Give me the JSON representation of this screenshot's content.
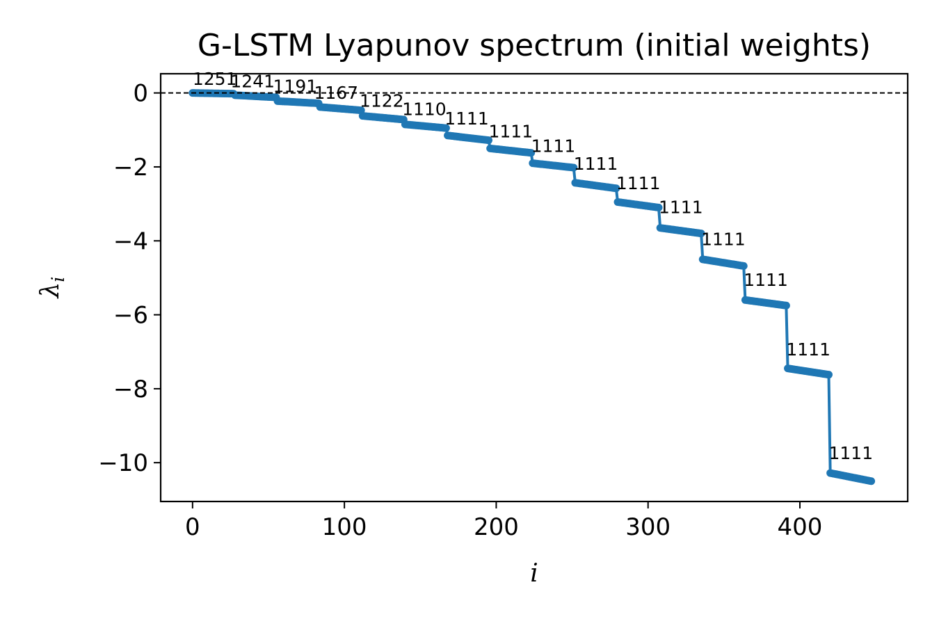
{
  "chart_data": {
    "type": "line",
    "title": "G-LSTM Lyapunov spectrum (initial weights)",
    "xlabel": "i",
    "ylabel": "λ_i",
    "xlim": [
      -21,
      471
    ],
    "ylim": [
      -11.05,
      0.52
    ],
    "xticks": [
      0,
      100,
      200,
      300,
      400
    ],
    "xtick_labels": [
      "0",
      "100",
      "200",
      "300",
      "400"
    ],
    "yticks": [
      0,
      -2,
      -4,
      -6,
      -8,
      -10
    ],
    "ytick_labels": [
      "0",
      "−2",
      "−4",
      "−6",
      "−8",
      "−10"
    ],
    "grid": false,
    "legend": "none",
    "reference_line": {
      "y": 0,
      "style": "dashed",
      "color": "#000000"
    },
    "series_color": "#1f77b4",
    "series": [
      {
        "blocks": [
          {
            "i_start": 0,
            "i_end": 27,
            "y_start": 0.0,
            "y_end": -0.02
          },
          {
            "i_start": 28,
            "i_end": 55,
            "y_start": -0.06,
            "y_end": -0.12
          },
          {
            "i_start": 56,
            "i_end": 83,
            "y_start": -0.22,
            "y_end": -0.28
          },
          {
            "i_start": 84,
            "i_end": 111,
            "y_start": -0.38,
            "y_end": -0.47
          },
          {
            "i_start": 112,
            "i_end": 139,
            "y_start": -0.62,
            "y_end": -0.72
          },
          {
            "i_start": 140,
            "i_end": 167,
            "y_start": -0.85,
            "y_end": -0.95
          },
          {
            "i_start": 168,
            "i_end": 195,
            "y_start": -1.15,
            "y_end": -1.28
          },
          {
            "i_start": 196,
            "i_end": 223,
            "y_start": -1.5,
            "y_end": -1.62
          },
          {
            "i_start": 224,
            "i_end": 251,
            "y_start": -1.9,
            "y_end": -2.02
          },
          {
            "i_start": 252,
            "i_end": 279,
            "y_start": -2.43,
            "y_end": -2.58
          },
          {
            "i_start": 280,
            "i_end": 307,
            "y_start": -2.95,
            "y_end": -3.1
          },
          {
            "i_start": 308,
            "i_end": 335,
            "y_start": -3.65,
            "y_end": -3.8
          },
          {
            "i_start": 336,
            "i_end": 363,
            "y_start": -4.5,
            "y_end": -4.68
          },
          {
            "i_start": 364,
            "i_end": 391,
            "y_start": -5.6,
            "y_end": -5.75
          },
          {
            "i_start": 392,
            "i_end": 419,
            "y_start": -7.45,
            "y_end": -7.62
          },
          {
            "i_start": 420,
            "i_end": 447,
            "y_start": -10.28,
            "y_end": -10.5
          }
        ]
      }
    ],
    "annotations": [
      {
        "text": "1251",
        "x": 0,
        "y": 0.22
      },
      {
        "text": "1241",
        "x": 25,
        "y": 0.15
      },
      {
        "text": "1191",
        "x": 53,
        "y": 0.02
      },
      {
        "text": "1167",
        "x": 80,
        "y": -0.16
      },
      {
        "text": "1122",
        "x": 110,
        "y": -0.37
      },
      {
        "text": "1110",
        "x": 138,
        "y": -0.6
      },
      {
        "text": "1111",
        "x": 166,
        "y": -0.85
      },
      {
        "text": "1111",
        "x": 195,
        "y": -1.2
      },
      {
        "text": "1111",
        "x": 223,
        "y": -1.6
      },
      {
        "text": "1111",
        "x": 251,
        "y": -2.08
      },
      {
        "text": "1111",
        "x": 279,
        "y": -2.6
      },
      {
        "text": "1111",
        "x": 307,
        "y": -3.25
      },
      {
        "text": "1111",
        "x": 335,
        "y": -4.12
      },
      {
        "text": "1111",
        "x": 363,
        "y": -5.22
      },
      {
        "text": "1111",
        "x": 391,
        "y": -7.1
      },
      {
        "text": "1111",
        "x": 419,
        "y": -9.9
      }
    ]
  }
}
